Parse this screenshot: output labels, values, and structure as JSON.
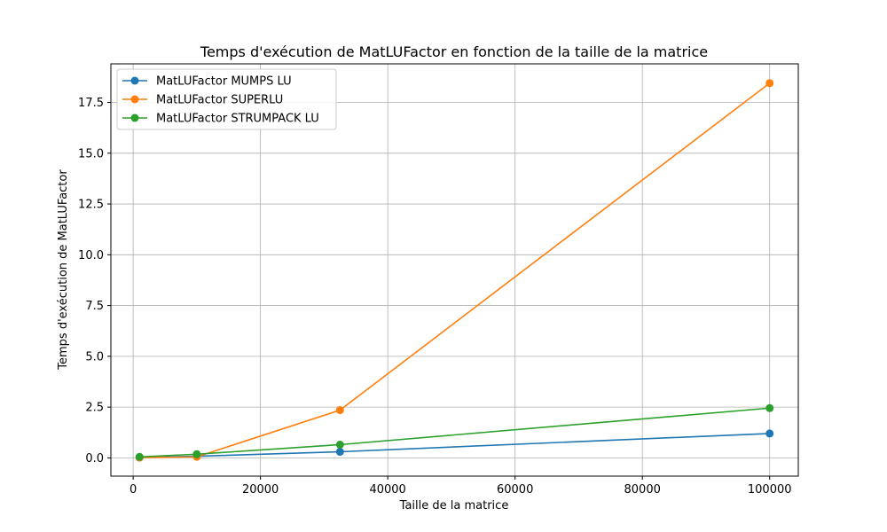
{
  "chart_data": {
    "type": "line",
    "title": "Temps d'exécution de MatLUFactor en fonction de la taille de la matrice",
    "xlabel": "Taille de la matrice",
    "ylabel": "Temps d'exécution de MatLUFactor",
    "xlim": [
      -3500,
      104500
    ],
    "ylim": [
      -0.9,
      19.4
    ],
    "xticks": [
      0,
      20000,
      40000,
      60000,
      80000,
      100000
    ],
    "xtick_labels": [
      "0",
      "20000",
      "40000",
      "60000",
      "80000",
      "100000"
    ],
    "yticks": [
      0,
      2.5,
      5,
      7.5,
      10,
      12.5,
      15,
      17.5
    ],
    "ytick_labels": [
      "0.0",
      "2.5",
      "5.0",
      "7.5",
      "10.0",
      "12.5",
      "15.0",
      "17.5"
    ],
    "grid": true,
    "legend_position": "top-left",
    "series": [
      {
        "name": "MatLUFactor MUMPS LU",
        "color": "#1f77b4",
        "x": [
          1000,
          10000,
          32500,
          100000
        ],
        "y": [
          0.02,
          0.08,
          0.3,
          1.2
        ]
      },
      {
        "name": "MatLUFactor SUPERLU",
        "color": "#ff7f0e",
        "x": [
          1000,
          10000,
          32500,
          100000
        ],
        "y": [
          0.01,
          0.05,
          2.35,
          18.45
        ]
      },
      {
        "name": "MatLUFactor STRUMPACK LU",
        "color": "#2ca02c",
        "x": [
          1000,
          10000,
          32500,
          100000
        ],
        "y": [
          0.05,
          0.18,
          0.65,
          2.45
        ]
      }
    ]
  }
}
